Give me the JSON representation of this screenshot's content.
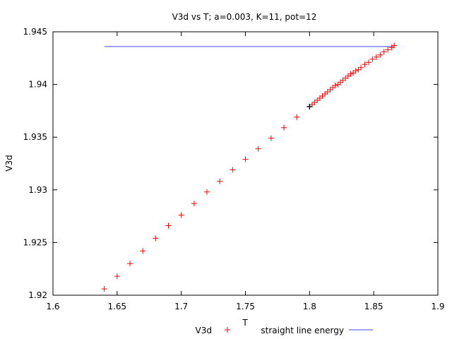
{
  "chart_data": {
    "type": "scatter",
    "title": "V3d vs T; a=0.003, K=11, pot=12",
    "xlabel": "T",
    "ylabel": "V3d",
    "xlim": [
      1.6,
      1.9
    ],
    "ylim": [
      1.92,
      1.945
    ],
    "x_ticks": [
      "1.6",
      "1.65",
      "1.7",
      "1.75",
      "1.8",
      "1.85",
      "1.9"
    ],
    "y_ticks": [
      "1.92",
      "1.925",
      "1.93",
      "1.935",
      "1.94",
      "1.945"
    ],
    "grid": false,
    "legend_position": "bottom",
    "series": [
      {
        "name": "V3d",
        "marker": "plus",
        "color": "#ff0000",
        "points": [
          [
            1.64,
            1.9206
          ],
          [
            1.65,
            1.9218
          ],
          [
            1.66,
            1.923
          ],
          [
            1.67,
            1.9242
          ],
          [
            1.68,
            1.9254
          ],
          [
            1.69,
            1.9266
          ],
          [
            1.7,
            1.9276
          ],
          [
            1.71,
            1.9287
          ],
          [
            1.72,
            1.9298
          ],
          [
            1.73,
            1.9308
          ],
          [
            1.74,
            1.9319
          ],
          [
            1.75,
            1.9329
          ],
          [
            1.76,
            1.9339
          ],
          [
            1.77,
            1.9349
          ],
          [
            1.78,
            1.9359
          ],
          [
            1.79,
            1.9369
          ],
          [
            1.8,
            1.9379
          ],
          [
            1.802,
            1.9381
          ],
          [
            1.804,
            1.9383
          ],
          [
            1.806,
            1.9385
          ],
          [
            1.808,
            1.9387
          ],
          [
            1.81,
            1.9389
          ],
          [
            1.812,
            1.9391
          ],
          [
            1.814,
            1.9393
          ],
          [
            1.816,
            1.9395
          ],
          [
            1.818,
            1.9397
          ],
          [
            1.82,
            1.9399
          ],
          [
            1.822,
            1.94
          ],
          [
            1.824,
            1.9402
          ],
          [
            1.826,
            1.9404
          ],
          [
            1.828,
            1.9406
          ],
          [
            1.83,
            1.9408
          ],
          [
            1.832,
            1.941
          ],
          [
            1.834,
            1.9411
          ],
          [
            1.836,
            1.9413
          ],
          [
            1.838,
            1.9414
          ],
          [
            1.84,
            1.9416
          ],
          [
            1.843,
            1.9419
          ],
          [
            1.846,
            1.9421
          ],
          [
            1.849,
            1.9424
          ],
          [
            1.852,
            1.9426
          ],
          [
            1.855,
            1.9428
          ],
          [
            1.858,
            1.9431
          ],
          [
            1.861,
            1.9433
          ],
          [
            1.864,
            1.9435
          ],
          [
            1.866,
            1.9437
          ]
        ]
      },
      {
        "name": "straight line energy",
        "type": "line",
        "color": "#6b6bff",
        "points": [
          [
            1.64,
            1.9436
          ],
          [
            1.866,
            1.9436
          ]
        ]
      }
    ],
    "highlight_point": {
      "x": 1.8,
      "y": 1.9379,
      "color": "#000000"
    }
  }
}
